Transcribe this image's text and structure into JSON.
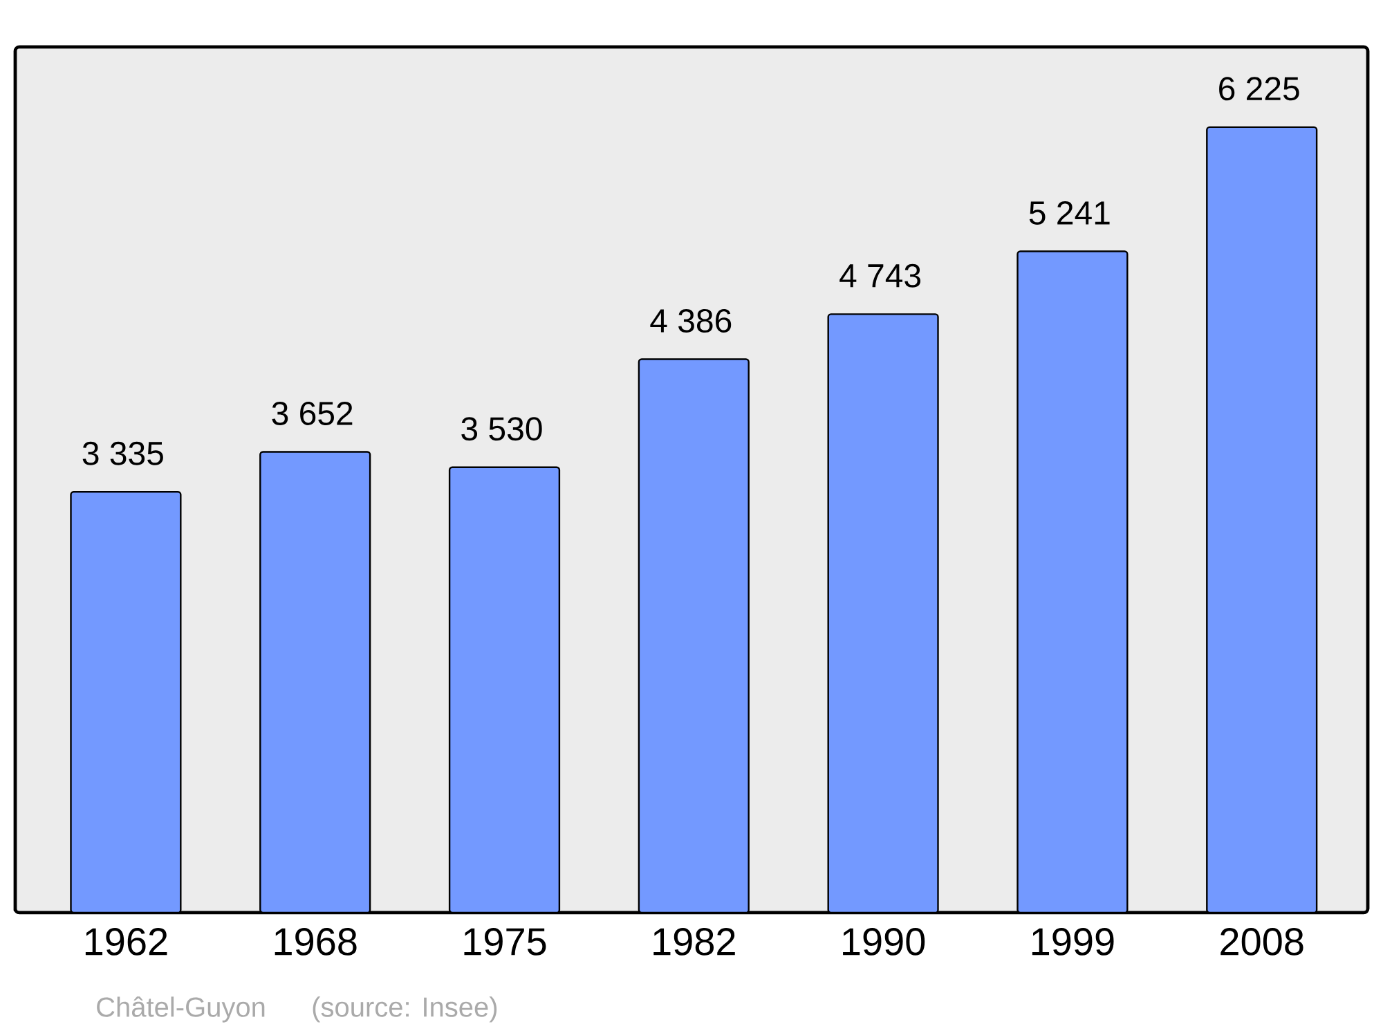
{
  "chart_data": {
    "type": "bar",
    "categories": [
      "1962",
      "1968",
      "1975",
      "1982",
      "1990",
      "1999",
      "2008"
    ],
    "values": [
      3335,
      3652,
      3530,
      4386,
      4743,
      5241,
      6225
    ],
    "value_labels": [
      "3 335",
      "3 652",
      "3 530",
      "4 386",
      "4 743",
      "5 241",
      "6 225"
    ],
    "color": "#7399ff",
    "annotations": [
      "Châtel-Guyon",
      "(source: Insee)"
    ]
  }
}
